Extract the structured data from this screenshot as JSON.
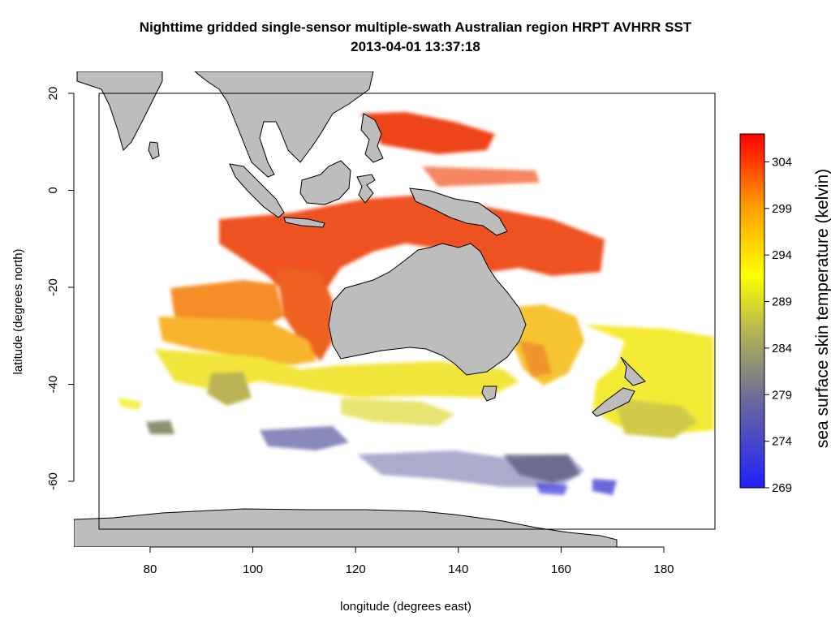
{
  "title_line1": "Nighttime gridded single-sensor multiple-swath Australian region HRPT AVHRR SST",
  "title_line2": "2013-04-01 13:37:18",
  "xlabel": "longitude (degrees east)",
  "ylabel": "latitude (degrees north)",
  "x_ticks": [
    "80",
    "100",
    "120",
    "140",
    "160",
    "180"
  ],
  "y_ticks": [
    "20",
    "0",
    "-20",
    "-40",
    "-60"
  ],
  "colorbar": {
    "title": "sea surface skin temperature (kelvin)",
    "ticks": [
      "269",
      "274",
      "279",
      "284",
      "289",
      "294",
      "299",
      "304"
    ],
    "range": [
      269,
      307
    ],
    "colors": [
      "#1e1ef0",
      "#7a7a8a",
      "#c8c83c",
      "#ffff00",
      "#ffa000",
      "#ff0000"
    ]
  },
  "map": {
    "x_range": [
      65,
      190
    ],
    "y_range": [
      -74,
      22
    ],
    "land_color": "#bdbdbd"
  }
}
